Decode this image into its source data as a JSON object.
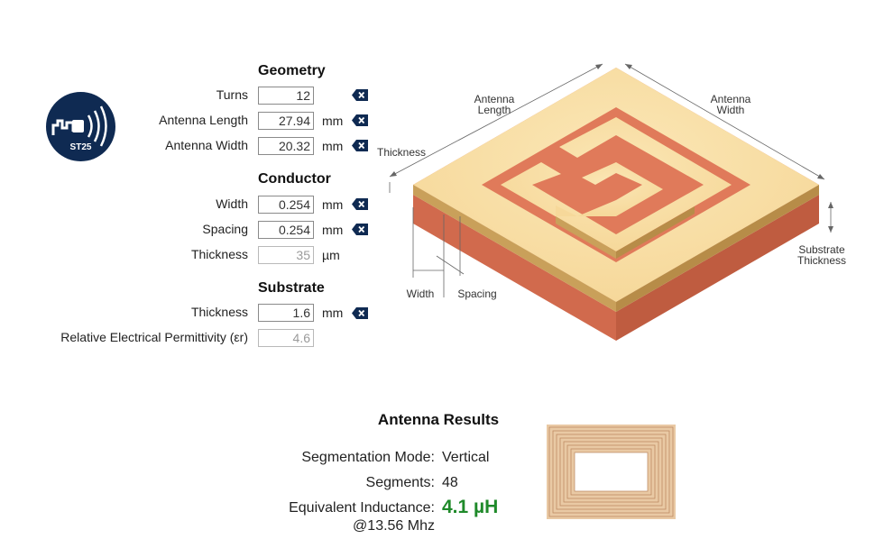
{
  "geometry": {
    "title": "Geometry",
    "turns": {
      "label": "Turns",
      "value": "12"
    },
    "length": {
      "label": "Antenna Length",
      "value": "27.94",
      "unit": "mm"
    },
    "width": {
      "label": "Antenna Width",
      "value": "20.32",
      "unit": "mm"
    }
  },
  "conductor": {
    "title": "Conductor",
    "width": {
      "label": "Width",
      "value": "0.254",
      "unit": "mm"
    },
    "spacing": {
      "label": "Spacing",
      "value": "0.254",
      "unit": "mm"
    },
    "thickness": {
      "label": "Thickness",
      "value": "35",
      "unit": "µm"
    }
  },
  "substrate": {
    "title": "Substrate",
    "thickness": {
      "label": "Thickness",
      "value": "1.6",
      "unit": "mm"
    },
    "permittivity": {
      "label": "Relative Electrical Permittivity (εr)",
      "value": "4.6"
    }
  },
  "logo": {
    "text": "ST25"
  },
  "diagram": {
    "antenna_length": [
      "Antenna",
      "Length"
    ],
    "antenna_width": [
      "Antenna",
      "Width"
    ],
    "thickness": "Thickness",
    "substrate_thickness": [
      "Substrate",
      "Thickness"
    ],
    "width": "Width",
    "spacing": "Spacing"
  },
  "results": {
    "title": "Antenna Results",
    "segmentation_label": "Segmentation Mode:",
    "segmentation_value": "Vertical",
    "segments_label": "Segments:",
    "segments_value": "48",
    "inductance_label": "Equivalent Inductance:",
    "inductance_value": "4.1 µH",
    "frequency": "@13.56 Mhz"
  },
  "colors": {
    "navy": "#0f2a52",
    "copper_top": "#f7dfa6",
    "copper_side": "#c79b55",
    "substrate_top": "#e07a5a",
    "substrate_side": "#c65f43",
    "result_green": "#1f8a2a"
  },
  "icons": {
    "clear": "clear-x-icon",
    "logo": "nfc-wireless-icon"
  }
}
